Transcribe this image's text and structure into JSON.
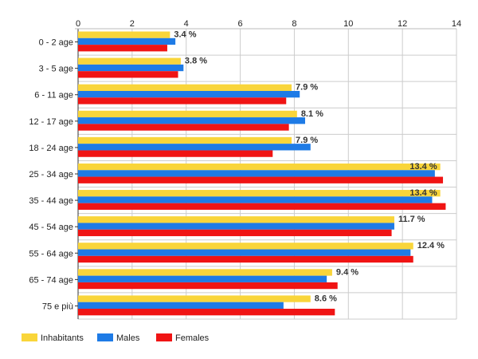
{
  "chart_data": {
    "type": "bar",
    "orientation": "horizontal",
    "title": "",
    "xlabel": "",
    "ylabel": "",
    "xlim": [
      0,
      14
    ],
    "xticks": [
      0,
      2,
      4,
      6,
      8,
      10,
      12,
      14
    ],
    "x_axis_position": "top",
    "grid": true,
    "legend_position": "bottom-left",
    "categories": [
      "0 - 2 age",
      "3 - 5 age",
      "6 - 11 age",
      "12 - 17 age",
      "18 - 24 age",
      "25 - 34 age",
      "35 - 44 age",
      "45 - 54 age",
      "55 - 64 age",
      "65 - 74 age",
      "75 e più"
    ],
    "series": [
      {
        "name": "Inhabitants",
        "color": "#F9D53A",
        "values": [
          3.4,
          3.8,
          7.9,
          8.1,
          7.9,
          13.4,
          13.4,
          11.7,
          12.4,
          9.4,
          8.6
        ]
      },
      {
        "name": "Males",
        "color": "#1E7BE6",
        "values": [
          3.6,
          3.9,
          8.2,
          8.4,
          8.6,
          13.2,
          13.1,
          11.7,
          12.3,
          9.2,
          7.6
        ]
      },
      {
        "name": "Females",
        "color": "#F01414",
        "values": [
          3.3,
          3.7,
          7.7,
          7.8,
          7.2,
          13.5,
          13.6,
          11.6,
          12.4,
          9.6,
          9.5
        ]
      }
    ],
    "data_labels": [
      "3.4 %",
      "3.8 %",
      "7.9 %",
      "8.1 %",
      "7.9 %",
      "13.4 %",
      "13.4 %",
      "11.7 %",
      "12.4 %",
      "9.4 %",
      "8.6 %"
    ]
  }
}
